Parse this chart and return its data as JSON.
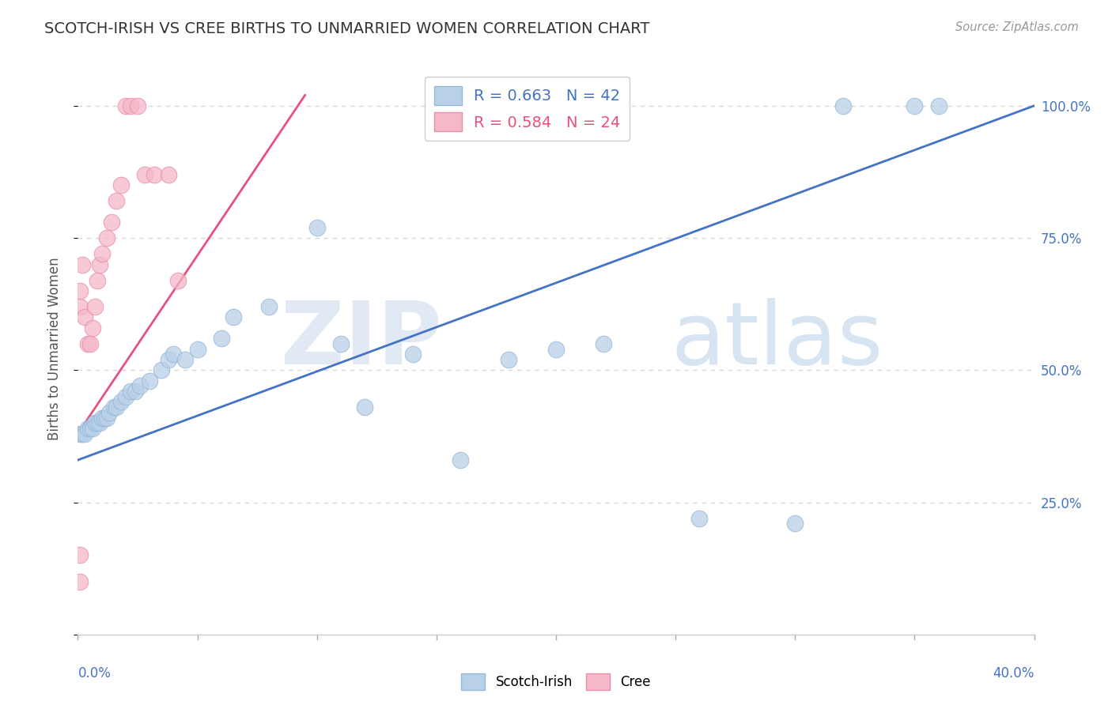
{
  "title": "SCOTCH-IRISH VS CREE BIRTHS TO UNMARRIED WOMEN CORRELATION CHART",
  "source": "Source: ZipAtlas.com",
  "ylabel": "Births to Unmarried Women",
  "legend_blue_r": "R = 0.663",
  "legend_blue_n": "N = 42",
  "legend_pink_r": "R = 0.584",
  "legend_pink_n": "N = 24",
  "blue_color": "#b8d0e8",
  "blue_edge_color": "#96b8d8",
  "blue_line_color": "#4472c4",
  "pink_color": "#f4b8c8",
  "pink_edge_color": "#e890a8",
  "pink_line_color": "#e8527a",
  "blue_scatter_x": [
    0.001,
    0.002,
    0.003,
    0.004,
    0.005,
    0.006,
    0.007,
    0.008,
    0.009,
    0.01,
    0.011,
    0.012,
    0.013,
    0.015,
    0.016,
    0.018,
    0.02,
    0.022,
    0.024,
    0.026,
    0.03,
    0.035,
    0.038,
    0.04,
    0.045,
    0.05,
    0.06,
    0.065,
    0.08,
    0.1,
    0.11,
    0.12,
    0.14,
    0.16,
    0.18,
    0.2,
    0.22,
    0.26,
    0.3,
    0.32,
    0.35,
    0.36
  ],
  "blue_scatter_y": [
    0.38,
    0.38,
    0.38,
    0.39,
    0.39,
    0.39,
    0.4,
    0.4,
    0.4,
    0.41,
    0.41,
    0.41,
    0.42,
    0.43,
    0.43,
    0.44,
    0.45,
    0.46,
    0.46,
    0.47,
    0.48,
    0.5,
    0.52,
    0.53,
    0.52,
    0.54,
    0.56,
    0.6,
    0.62,
    0.77,
    0.55,
    0.43,
    0.53,
    0.33,
    0.52,
    0.54,
    0.55,
    0.22,
    0.21,
    1.0,
    1.0,
    1.0
  ],
  "pink_scatter_x": [
    0.001,
    0.001,
    0.002,
    0.003,
    0.004,
    0.005,
    0.006,
    0.007,
    0.008,
    0.009,
    0.01,
    0.012,
    0.014,
    0.016,
    0.018,
    0.02,
    0.022,
    0.025,
    0.028,
    0.032,
    0.038,
    0.042,
    0.001,
    0.001
  ],
  "pink_scatter_y": [
    0.62,
    0.65,
    0.7,
    0.6,
    0.55,
    0.55,
    0.58,
    0.62,
    0.67,
    0.7,
    0.72,
    0.75,
    0.78,
    0.82,
    0.85,
    1.0,
    1.0,
    1.0,
    0.87,
    0.87,
    0.87,
    0.67,
    0.15,
    0.1
  ],
  "blue_line_x": [
    0.0,
    0.4
  ],
  "blue_line_y": [
    0.33,
    1.0
  ],
  "pink_line_x": [
    0.0,
    0.095
  ],
  "pink_line_y": [
    0.38,
    1.02
  ],
  "watermark_zip": "ZIP",
  "watermark_atlas": "atlas",
  "background_color": "#ffffff",
  "grid_color": "#d8d8d8",
  "xlim": [
    0.0,
    0.4
  ],
  "ylim": [
    0.0,
    1.08
  ],
  "yticks": [
    0.0,
    0.25,
    0.5,
    0.75,
    1.0
  ],
  "ytick_labels_right": [
    "",
    "25.0%",
    "50.0%",
    "75.0%",
    "100.0%"
  ]
}
